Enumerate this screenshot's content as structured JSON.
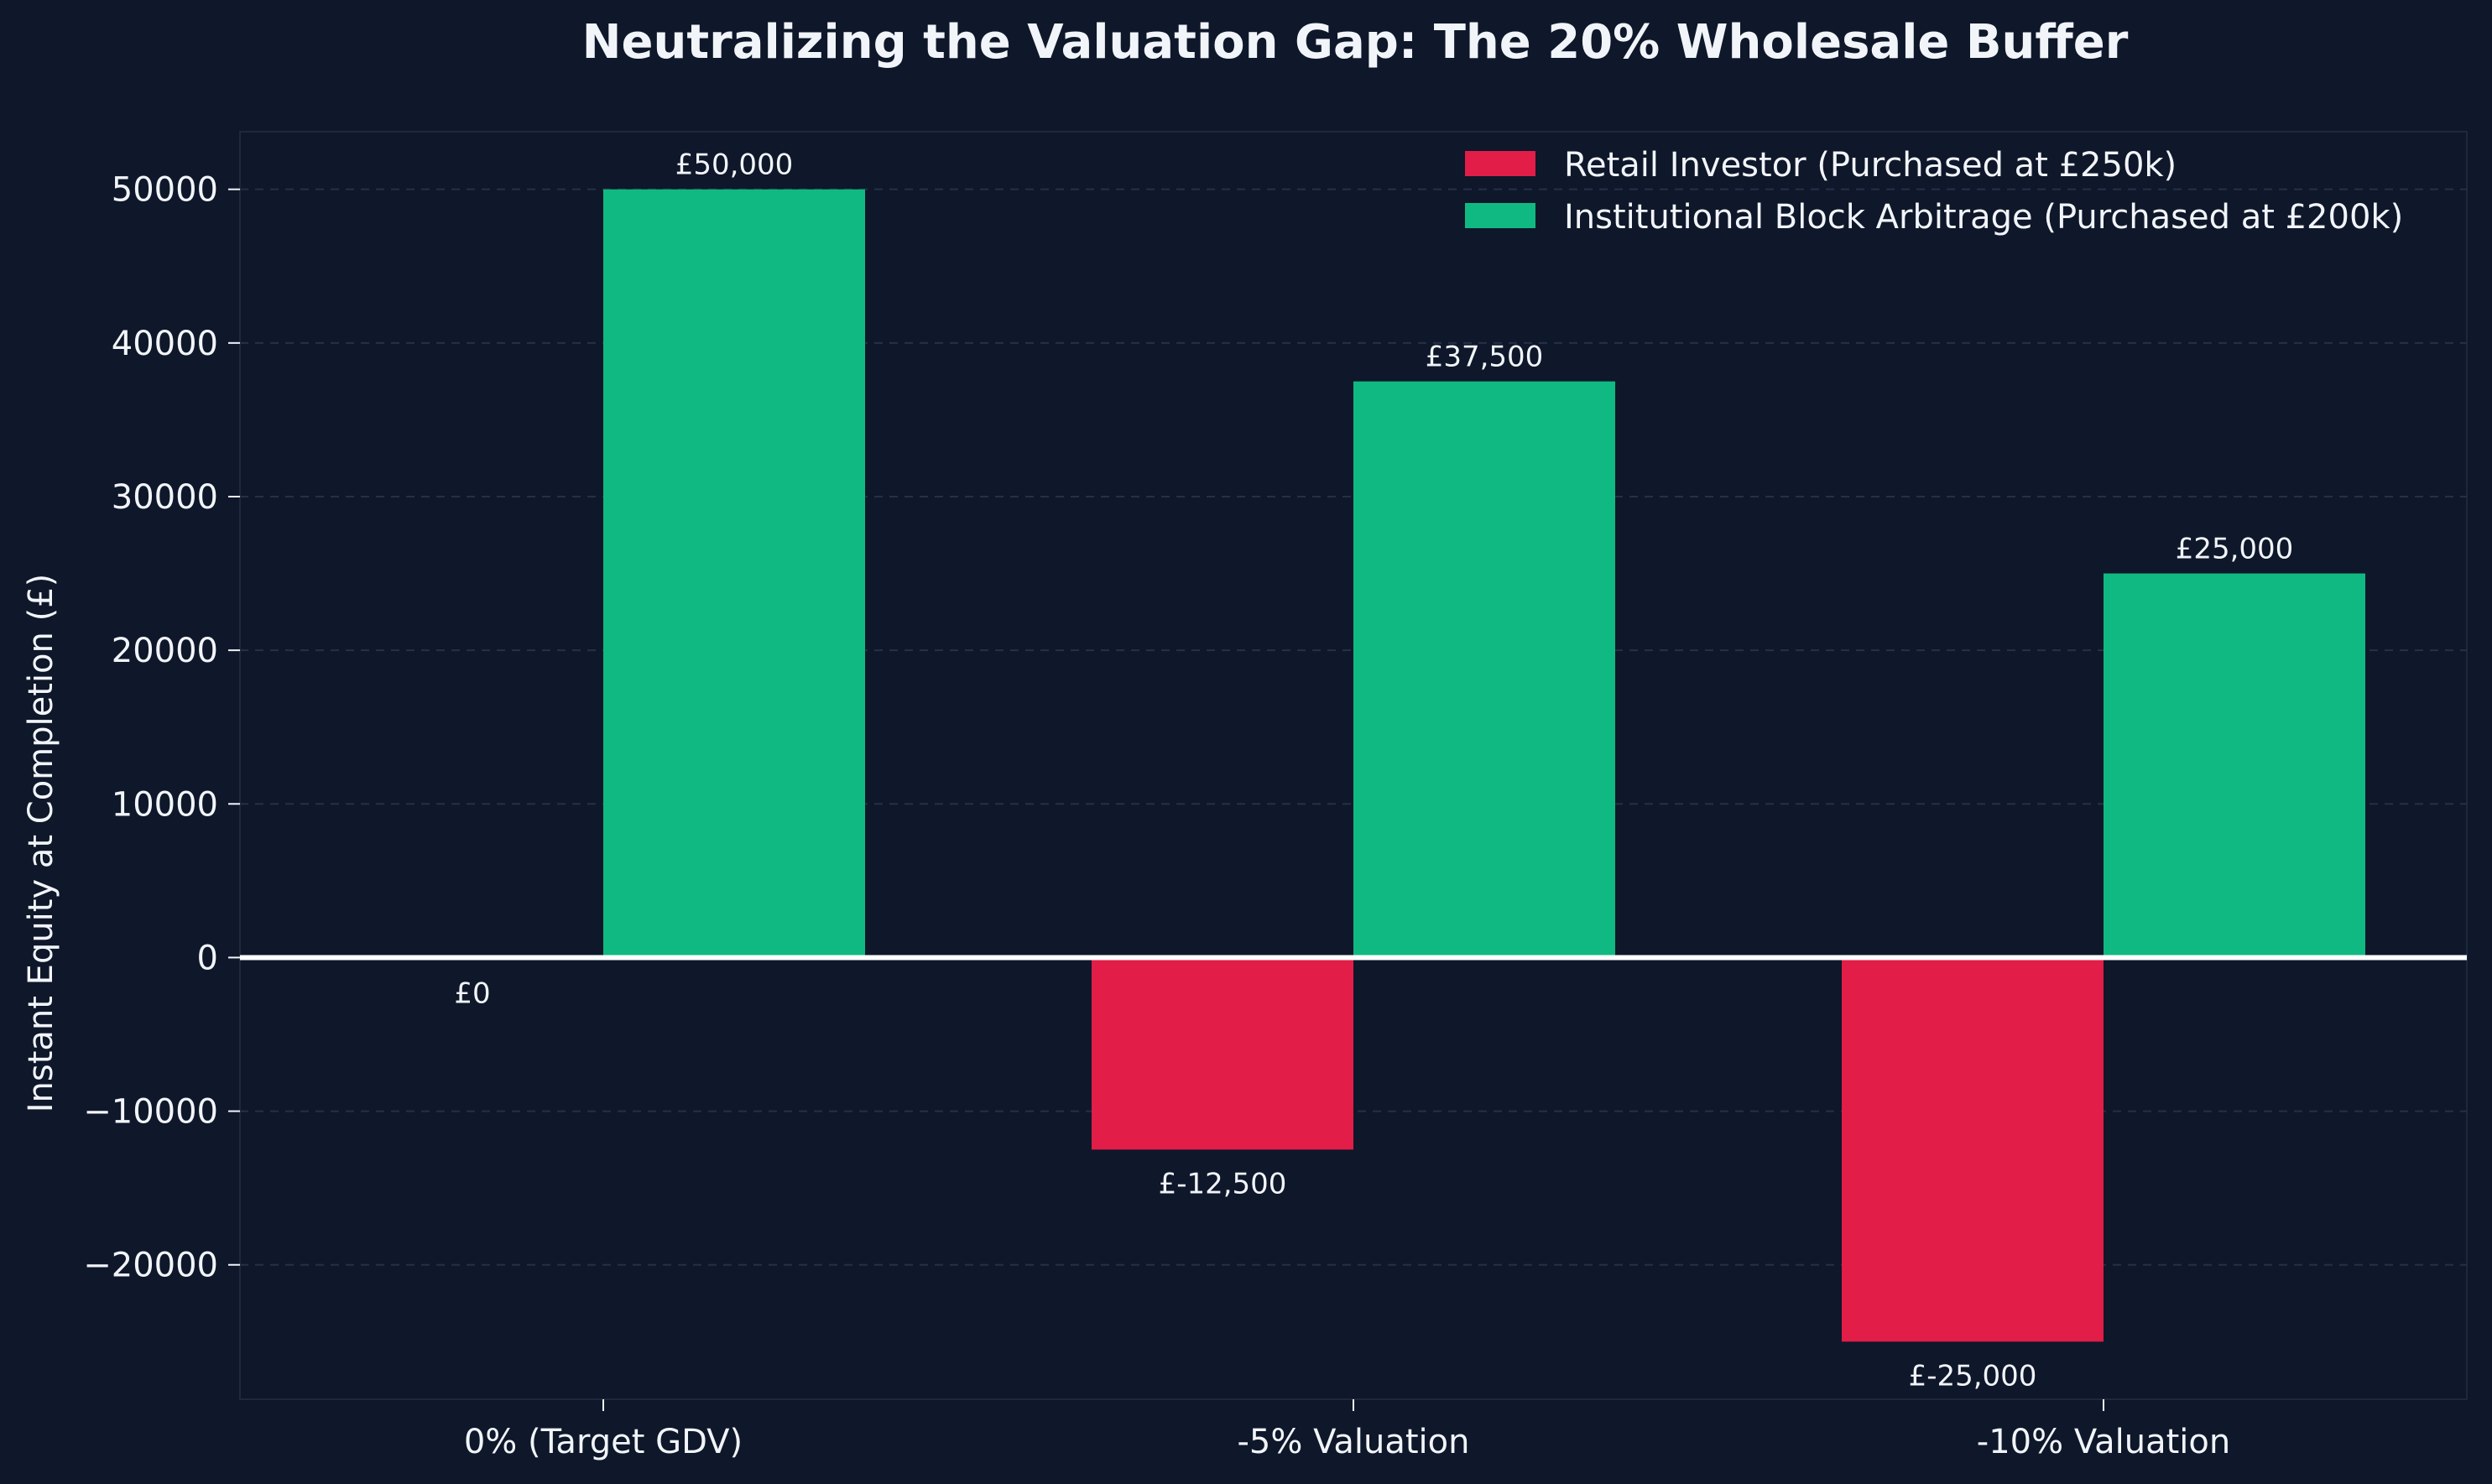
{
  "chart_data": {
    "type": "bar",
    "title": "Neutralizing the Valuation Gap: The 20% Wholesale Buffer",
    "xlabel": "",
    "ylabel": "Instant Equity at Completion (£)",
    "categories": [
      "0% (Target GDV)",
      "-5% Valuation",
      "-10% Valuation"
    ],
    "series": [
      {
        "name": "Retail Investor (Purchased at £250k)",
        "color": "#e11d48",
        "values": [
          0,
          -12500,
          -25000
        ],
        "labels": [
          "£0",
          "£-12,500",
          "£-25,000"
        ]
      },
      {
        "name": "Institutional Block Arbitrage (Purchased at £200k)",
        "color": "#10b981",
        "values": [
          50000,
          37500,
          25000
        ],
        "labels": [
          "£50,000",
          "£37,500",
          "£25,000"
        ]
      }
    ],
    "ylim": [
      -28750,
      53750
    ],
    "yticks": [
      -20000,
      -10000,
      0,
      10000,
      20000,
      30000,
      40000,
      50000
    ],
    "ytick_labels": [
      "−20000",
      "−10000",
      "0",
      "10000",
      "20000",
      "30000",
      "40000",
      "50000"
    ],
    "grid": true,
    "legend": "top-right",
    "colors": {
      "background": "#0f172a",
      "text": "#f1f5f9",
      "zero_line": "#ffffff"
    }
  }
}
